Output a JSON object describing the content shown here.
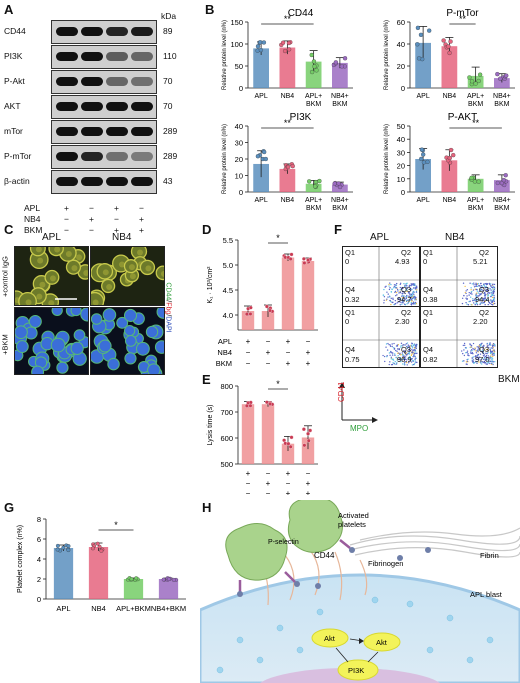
{
  "panels": {
    "A": {
      "letter": "A",
      "kda_label": "kDa",
      "proteins": [
        {
          "name": "CD44",
          "kda": "89"
        },
        {
          "name": "PI3K",
          "kda": "110"
        },
        {
          "name": "P-Akt",
          "kda": "70"
        },
        {
          "name": "AKT",
          "kda": "70"
        },
        {
          "name": "mTor",
          "kda": "289"
        },
        {
          "name": "P-mTor",
          "kda": "289"
        },
        {
          "name": "β-actin",
          "kda": "43"
        }
      ],
      "conditions": [
        {
          "name": "APL",
          "signs": [
            "+",
            "−",
            "+",
            "−"
          ]
        },
        {
          "name": "NB4",
          "signs": [
            "−",
            "+",
            "−",
            "+"
          ]
        },
        {
          "name": "BKM",
          "signs": [
            "−",
            "−",
            "+",
            "+"
          ]
        }
      ]
    },
    "B": {
      "letter": "B",
      "ylabel": "Relative protein level (n%)",
      "categories": [
        "APL",
        "NB4",
        "APL+\nBKM",
        "NB4+\nBKM"
      ],
      "sig": "**",
      "charts": [
        {
          "title": "CD44",
          "type": "bar",
          "ylim": [
            0,
            150
          ],
          "yticks": [
            0,
            50,
            100,
            150
          ],
          "values": [
            90,
            92,
            60,
            57
          ],
          "errors": [
            15,
            15,
            25,
            12
          ],
          "sig_between": [
            0,
            2
          ]
        },
        {
          "title": "P-mTor",
          "type": "bar",
          "ylim": [
            0,
            60
          ],
          "yticks": [
            0,
            20,
            40,
            60
          ],
          "values": [
            41,
            38,
            11,
            9
          ],
          "errors": [
            15,
            8,
            8,
            4
          ],
          "sig_between": [
            1,
            2
          ]
        },
        {
          "title": "PI3K",
          "type": "bar",
          "ylim": [
            0,
            40
          ],
          "yticks": [
            0,
            10,
            20,
            30,
            40
          ],
          "values": [
            17,
            14,
            5,
            4.5
          ],
          "errors": [
            8,
            3,
            2,
            1.5
          ],
          "sig_between": [
            0,
            2
          ]
        },
        {
          "title": "P-AKT",
          "type": "bar",
          "ylim": [
            0,
            50
          ],
          "yticks": [
            0,
            10,
            20,
            30,
            40,
            50
          ],
          "values": [
            25,
            24,
            10,
            9
          ],
          "errors": [
            8,
            8,
            3,
            4
          ],
          "sig_between": [
            1,
            3
          ]
        }
      ]
    },
    "C": {
      "letter": "C",
      "columns": [
        "APL",
        "NB4"
      ],
      "rows": [
        "+control IgG",
        "+BKM"
      ],
      "stain_parts": [
        "CD44",
        "/",
        "Fbg",
        "/",
        "DAPI"
      ]
    },
    "D": {
      "letter": "D",
      "ylabel": "K₁ · 10³/cm²",
      "yticks": [
        "4.0",
        "4.5",
        "5.0",
        "5.5"
      ],
      "ylim": [
        3.7,
        5.5
      ],
      "values": [
        4.08,
        4.08,
        5.15,
        5.08
      ],
      "errors": [
        0.1,
        0.12,
        0.07,
        0.06
      ],
      "sig": "*",
      "conditions": [
        {
          "name": "APL",
          "signs": [
            "+",
            "−",
            "+",
            "−"
          ]
        },
        {
          "name": "NB4",
          "signs": [
            "−",
            "+",
            "−",
            "+"
          ]
        },
        {
          "name": "BKM",
          "signs": [
            "−",
            "−",
            "+",
            "+"
          ]
        }
      ]
    },
    "E": {
      "letter": "E",
      "ylabel": "Lysis time (s)",
      "yticks": [
        "500",
        "600",
        "700",
        "800"
      ],
      "ylim": [
        500,
        800
      ],
      "values": [
        730,
        730,
        578,
        602
      ],
      "errors": [
        10,
        10,
        28,
        45
      ],
      "sig": "*",
      "signs": [
        [
          "+",
          "−",
          "+",
          "−"
        ],
        [
          "−",
          "+",
          "−",
          "+"
        ],
        [
          "−",
          "−",
          "+",
          "+"
        ]
      ]
    },
    "F": {
      "letter": "F",
      "columns": [
        "APL",
        "NB4"
      ],
      "row_label": "BKM",
      "xlabel": "MPO",
      "ylabel": "CD41",
      "plots": [
        {
          "q1": "Q1",
          "q1v": "0",
          "q2": "Q2",
          "q2v": "4.93",
          "q4": "Q4",
          "q4v": "0.32",
          "q3": "Q3",
          "q3v": "94.7"
        },
        {
          "q1": "Q1",
          "q1v": "0",
          "q2": "Q2",
          "q2v": "5.21",
          "q4": "Q4",
          "q4v": "0.38",
          "q3": "Q3",
          "q3v": "94.4"
        },
        {
          "q1": "Q1",
          "q1v": "0",
          "q2": "Q2",
          "q2v": "2.30",
          "q4": "Q4",
          "q4v": "0.75",
          "q3": "Q3",
          "q3v": "96.9"
        },
        {
          "q1": "Q1",
          "q1v": "0",
          "q2": "Q2",
          "q2v": "2.20",
          "q4": "Q4",
          "q4v": "0.82",
          "q3": "Q3",
          "q3v": "97.0"
        }
      ]
    },
    "G": {
      "letter": "G",
      "ylabel": "Platelet complex (n%)",
      "yticks": [
        "0",
        "2",
        "4",
        "6",
        "8"
      ],
      "ylim": [
        0,
        8
      ],
      "categories": [
        "APL",
        "NB4",
        "APL+BKM",
        "NB4+BKM"
      ],
      "values": [
        5.1,
        5.2,
        2.0,
        2.0
      ],
      "errors": [
        0.3,
        0.4,
        0.1,
        0.1
      ],
      "sig": "*"
    },
    "H": {
      "letter": "H",
      "labels": {
        "activated": "Activated\nplatelets",
        "pselectin": "P-selectin",
        "cd44": "CD44",
        "fibrinogen": "Fibrinogen",
        "fibrin": "Fibrin",
        "blast": "APL blast",
        "akt1": "Akt",
        "akt2": "Akt",
        "pi3k": "PI3K"
      }
    }
  },
  "colors": {
    "apl": "#5a8fbe",
    "nb4": "#e5647e",
    "apl_bkm": "#74cc66",
    "nb4_bkm": "#9b6bc1",
    "pink_bar": "#ef8f92"
  }
}
